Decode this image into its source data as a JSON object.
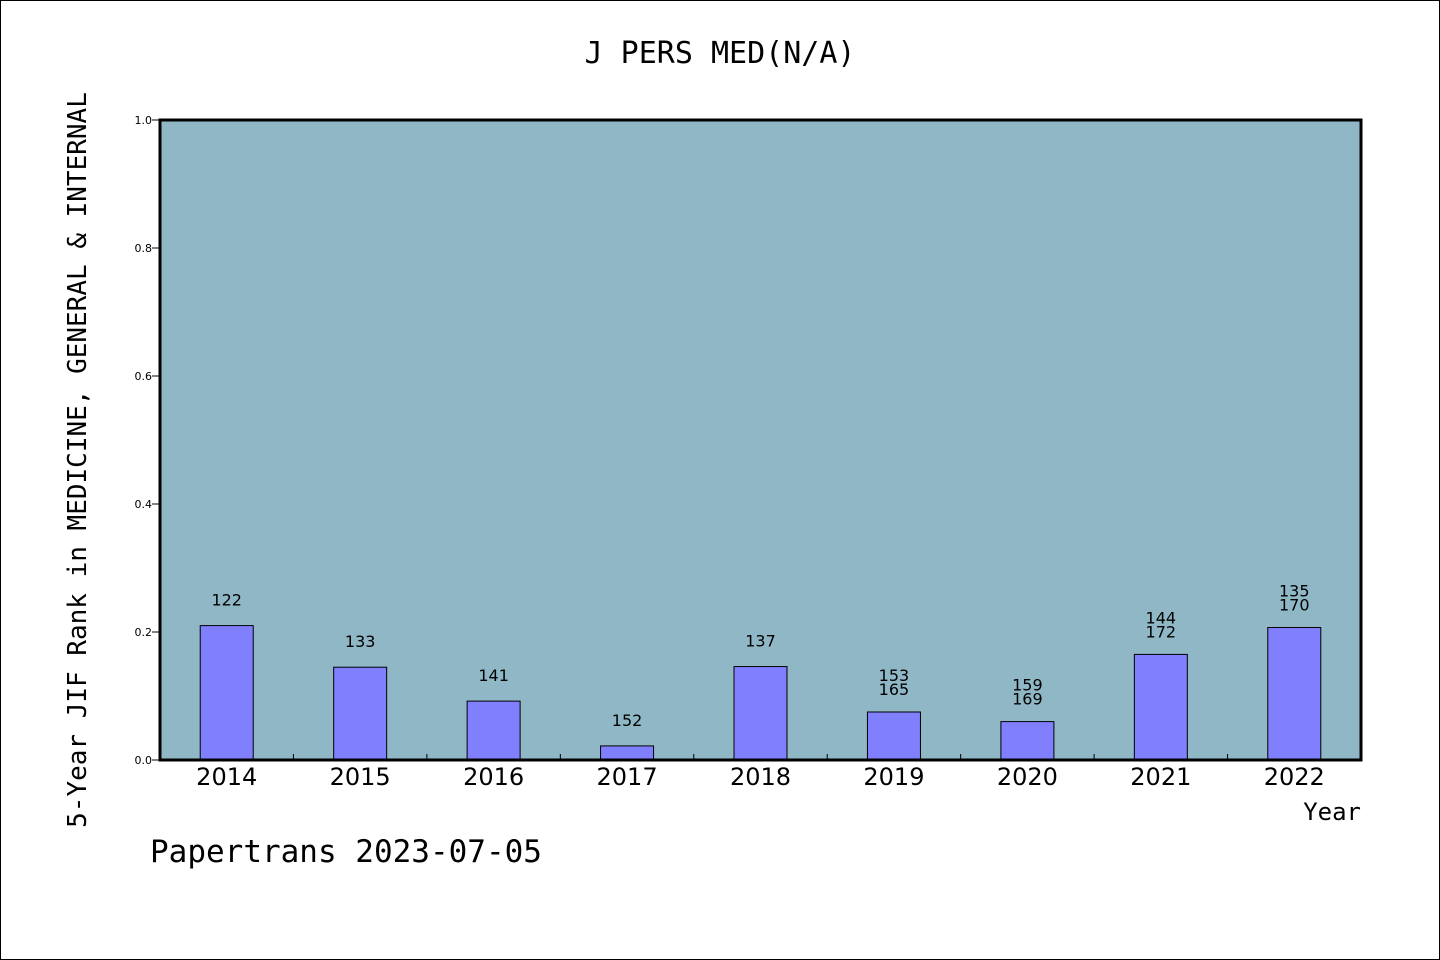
{
  "title": "J PERS MED(N/A)",
  "footer": "Papertrans 2023-07-05",
  "colors": {
    "plot_background": "#8fb7c5",
    "bar_fill": "#8080ff",
    "axis": "#000000"
  },
  "chart_data": {
    "type": "bar",
    "title": "J PERS MED(N/A)",
    "xlabel": "Year",
    "ylabel": "5-Year JIF Rank in MEDICINE, GENERAL & INTERNAL",
    "ylim": [
      0,
      1.0
    ],
    "yticks": [
      "0.0",
      "0.2",
      "0.4",
      "0.6",
      "0.8",
      "1.0"
    ],
    "grid": false,
    "categories": [
      "2014",
      "2015",
      "2016",
      "2017",
      "2018",
      "2019",
      "2020",
      "2021",
      "2022"
    ],
    "values": [
      0.21,
      0.145,
      0.092,
      0.022,
      0.146,
      0.075,
      0.06,
      0.165,
      0.207
    ],
    "bar_labels": [
      [
        "122"
      ],
      [
        "133"
      ],
      [
        "141"
      ],
      [
        "152"
      ],
      [
        "137"
      ],
      [
        "153",
        "165"
      ],
      [
        "159",
        "169"
      ],
      [
        "144",
        "172"
      ],
      [
        "135",
        "170"
      ]
    ]
  }
}
